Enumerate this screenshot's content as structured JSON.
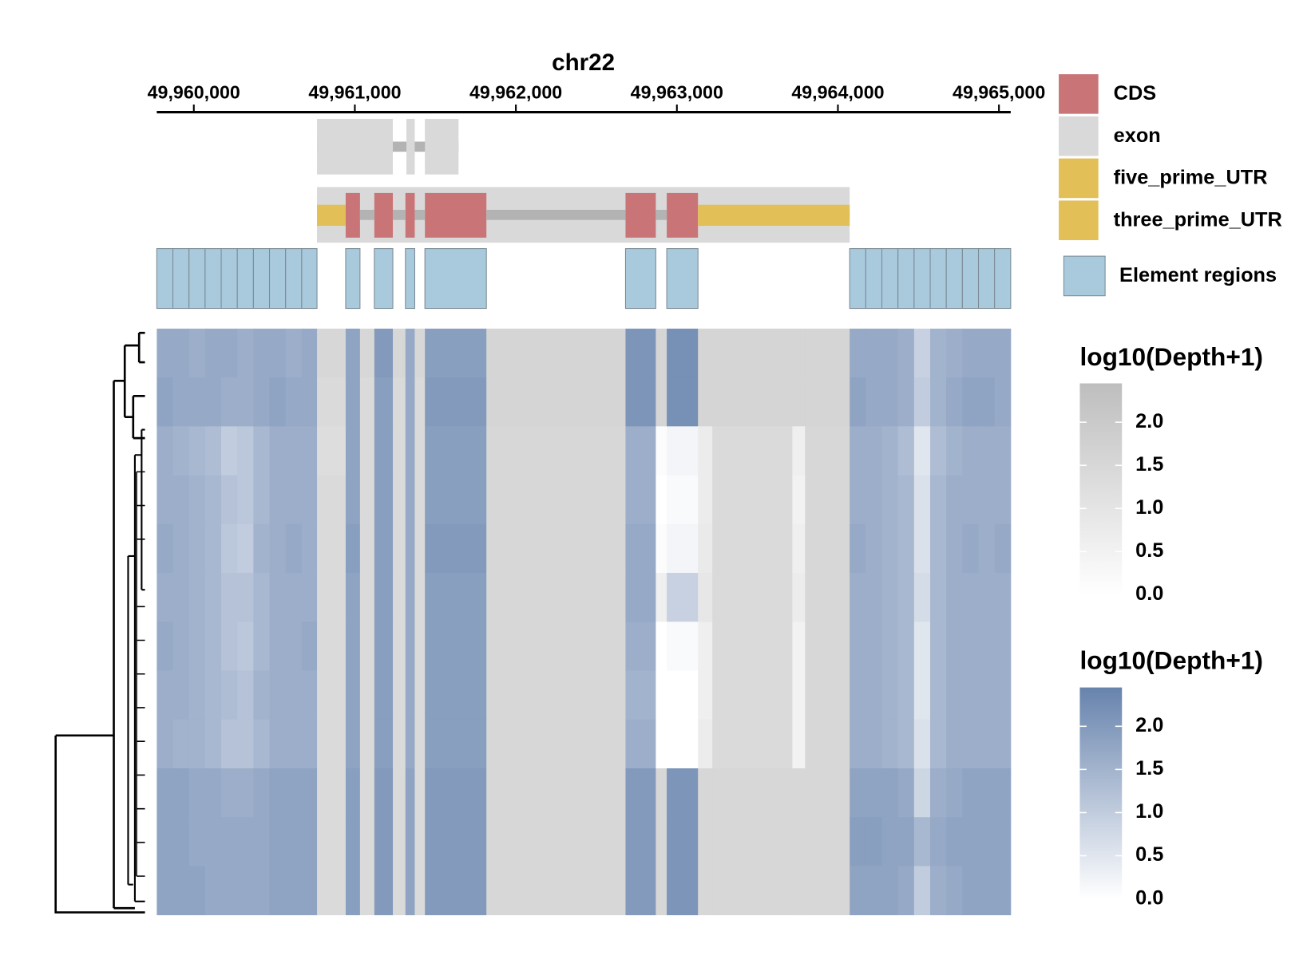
{
  "chart_data": {
    "type": "heatmap",
    "title": "chr22",
    "xlim": [
      49959770,
      49965073
    ],
    "xticks": [
      {
        "value": 49960000,
        "label": "49,960,000"
      },
      {
        "value": 49961000,
        "label": "49,961,000"
      },
      {
        "value": 49962000,
        "label": "49,962,000"
      },
      {
        "value": 49963000,
        "label": "49,963,000"
      },
      {
        "value": 49964000,
        "label": "49,964,000"
      },
      {
        "value": 49965000,
        "label": "49,965,000"
      }
    ],
    "intron_color": "#b3b3b3",
    "legend": [
      {
        "name": "CDS",
        "color": "#c97577"
      },
      {
        "name": "exon",
        "color": "#d9d9d9"
      },
      {
        "name": "five_prime_UTR",
        "color": "#e3bf58"
      },
      {
        "name": "three_prime_UTR",
        "color": "#e3bf58"
      },
      {
        "name": "Element regions",
        "color": "#a9cadd"
      }
    ],
    "transcripts": [
      {
        "layers": [
          {
            "legend": 1,
            "ranges": [
              [
                49960765,
                49961236
              ],
              [
                49961320,
                49961372
              ],
              [
                49961435,
                49961644
              ]
            ]
          }
        ]
      },
      {
        "layers": [
          {
            "legend": 1,
            "ranges": [
              [
                49960765,
                49964073
              ]
            ]
          },
          {
            "legend": 2,
            "ranges": [
              [
                49960765,
                49960943
              ]
            ]
          },
          {
            "legend": 0,
            "ranges": [
              [
                49960943,
                49961032
              ],
              [
                49961121,
                49961236
              ],
              [
                49961314,
                49961372
              ],
              [
                49961435,
                49961817
              ],
              [
                49962681,
                49962869
              ],
              [
                49962937,
                49963131
              ]
            ]
          },
          {
            "legend": 3,
            "ranges": [
              [
                49963131,
                49964073
              ]
            ]
          }
        ]
      }
    ],
    "element_regions": [
      [
        49959770,
        49959870
      ],
      [
        49959870,
        49959970
      ],
      [
        49959970,
        49960070
      ],
      [
        49960070,
        49960170
      ],
      [
        49960170,
        49960270
      ],
      [
        49960270,
        49960370
      ],
      [
        49960370,
        49960470
      ],
      [
        49960470,
        49960570
      ],
      [
        49960570,
        49960670
      ],
      [
        49960670,
        49960765
      ],
      [
        49960943,
        49961032
      ],
      [
        49961121,
        49961236
      ],
      [
        49961314,
        49961372
      ],
      [
        49961435,
        49961817
      ],
      [
        49962681,
        49962869
      ],
      [
        49962937,
        49963131
      ],
      [
        49964073,
        49964173
      ],
      [
        49964173,
        49964273
      ],
      [
        49964273,
        49964373
      ],
      [
        49964373,
        49964473
      ],
      [
        49964473,
        49964573
      ],
      [
        49964573,
        49964673
      ],
      [
        49964673,
        49964773
      ],
      [
        49964773,
        49964873
      ],
      [
        49964873,
        49964973
      ],
      [
        49964973,
        49965073
      ]
    ],
    "heatmap": {
      "col_breaks": [
        49959770,
        49959870,
        49959970,
        49960070,
        49960170,
        49960270,
        49960370,
        49960470,
        49960570,
        49960670,
        49960765,
        49960943,
        49961032,
        49961121,
        49961236,
        49961314,
        49961372,
        49961435,
        49961817,
        49962681,
        49962869,
        49962937,
        49963131,
        49963220,
        49963717,
        49963796,
        49964073,
        49964173,
        49964273,
        49964373,
        49964473,
        49964573,
        49964673,
        49964773,
        49964873,
        49964973,
        49965073
      ],
      "col_scale": [
        1,
        1,
        1,
        1,
        1,
        1,
        1,
        1,
        1,
        1,
        0,
        1,
        0,
        1,
        0,
        1,
        0,
        1,
        0,
        1,
        0,
        1,
        0,
        0,
        0,
        0,
        1,
        1,
        1,
        1,
        1,
        1,
        1,
        1,
        1,
        1
      ],
      "rows": [
        [
          1.7,
          1.7,
          1.6,
          1.7,
          1.7,
          1.6,
          1.7,
          1.7,
          1.6,
          1.7,
          1.5,
          1.8,
          1.5,
          2.0,
          1.5,
          1.7,
          1.5,
          1.9,
          1.6,
          2.1,
          1.6,
          2.2,
          1.6,
          1.6,
          1.6,
          1.6,
          1.7,
          1.7,
          1.7,
          1.6,
          0.9,
          1.5,
          1.6,
          1.7,
          1.7,
          1.7
        ],
        [
          1.8,
          1.7,
          1.7,
          1.7,
          1.6,
          1.6,
          1.7,
          1.8,
          1.7,
          1.7,
          1.4,
          1.8,
          1.4,
          1.9,
          1.4,
          1.7,
          1.4,
          2.0,
          1.6,
          2.1,
          1.6,
          2.2,
          1.6,
          1.6,
          1.6,
          1.6,
          1.8,
          1.7,
          1.7,
          1.6,
          1.0,
          1.5,
          1.7,
          1.8,
          1.8,
          1.7
        ],
        [
          1.6,
          1.5,
          1.4,
          1.3,
          1.0,
          1.1,
          1.4,
          1.6,
          1.6,
          1.6,
          1.3,
          1.8,
          1.4,
          1.9,
          1.4,
          1.7,
          1.4,
          1.9,
          1.5,
          1.6,
          0.1,
          0.2,
          0.7,
          1.4,
          0.6,
          1.5,
          1.6,
          1.6,
          1.5,
          1.3,
          0.5,
          1.3,
          1.5,
          1.6,
          1.6,
          1.6
        ],
        [
          1.6,
          1.6,
          1.5,
          1.4,
          1.2,
          1.1,
          1.4,
          1.6,
          1.6,
          1.6,
          1.4,
          1.8,
          1.4,
          1.9,
          1.4,
          1.7,
          1.4,
          1.9,
          1.5,
          1.6,
          0.0,
          0.1,
          0.7,
          1.4,
          0.5,
          1.5,
          1.6,
          1.6,
          1.5,
          1.4,
          0.6,
          1.4,
          1.6,
          1.6,
          1.6,
          1.6
        ],
        [
          1.7,
          1.6,
          1.5,
          1.4,
          1.1,
          1.0,
          1.5,
          1.6,
          1.7,
          1.6,
          1.4,
          1.9,
          1.4,
          1.9,
          1.4,
          1.7,
          1.4,
          2.0,
          1.5,
          1.7,
          0.1,
          0.2,
          0.8,
          1.4,
          0.6,
          1.5,
          1.7,
          1.6,
          1.5,
          1.4,
          0.6,
          1.4,
          1.6,
          1.7,
          1.6,
          1.7
        ],
        [
          1.6,
          1.6,
          1.5,
          1.4,
          1.2,
          1.2,
          1.4,
          1.6,
          1.6,
          1.6,
          1.4,
          1.8,
          1.4,
          1.9,
          1.4,
          1.7,
          1.4,
          1.9,
          1.5,
          1.7,
          0.6,
          0.9,
          0.9,
          1.4,
          0.7,
          1.5,
          1.6,
          1.6,
          1.5,
          1.4,
          0.7,
          1.4,
          1.6,
          1.6,
          1.6,
          1.6
        ],
        [
          1.7,
          1.6,
          1.5,
          1.4,
          1.2,
          1.1,
          1.4,
          1.6,
          1.6,
          1.7,
          1.4,
          1.8,
          1.4,
          1.9,
          1.4,
          1.7,
          1.4,
          1.9,
          1.5,
          1.6,
          0.0,
          0.1,
          0.6,
          1.4,
          0.5,
          1.5,
          1.6,
          1.6,
          1.5,
          1.4,
          0.5,
          1.4,
          1.6,
          1.6,
          1.6,
          1.6
        ],
        [
          1.6,
          1.6,
          1.5,
          1.4,
          1.3,
          1.2,
          1.5,
          1.6,
          1.6,
          1.6,
          1.4,
          1.8,
          1.4,
          1.9,
          1.4,
          1.7,
          1.4,
          1.9,
          1.5,
          1.5,
          0.0,
          0.0,
          0.6,
          1.4,
          0.5,
          1.5,
          1.6,
          1.6,
          1.5,
          1.4,
          0.5,
          1.4,
          1.6,
          1.6,
          1.6,
          1.6
        ],
        [
          1.6,
          1.5,
          1.5,
          1.4,
          1.2,
          1.2,
          1.4,
          1.6,
          1.6,
          1.6,
          1.4,
          1.8,
          1.4,
          1.9,
          1.4,
          1.7,
          1.4,
          1.9,
          1.5,
          1.6,
          0.0,
          0.0,
          0.7,
          1.4,
          0.5,
          1.5,
          1.6,
          1.6,
          1.5,
          1.4,
          0.6,
          1.4,
          1.6,
          1.6,
          1.6,
          1.6
        ],
        [
          1.8,
          1.8,
          1.7,
          1.7,
          1.6,
          1.6,
          1.7,
          1.8,
          1.8,
          1.8,
          1.4,
          1.9,
          1.4,
          2.0,
          1.4,
          1.8,
          1.4,
          2.0,
          1.5,
          2.0,
          1.5,
          2.1,
          1.5,
          1.5,
          1.5,
          1.5,
          1.8,
          1.8,
          1.8,
          1.7,
          0.8,
          1.6,
          1.7,
          1.8,
          1.8,
          1.8
        ],
        [
          1.8,
          1.8,
          1.7,
          1.7,
          1.7,
          1.7,
          1.7,
          1.8,
          1.8,
          1.8,
          1.4,
          1.9,
          1.4,
          2.0,
          1.4,
          1.8,
          1.4,
          2.0,
          1.5,
          2.0,
          1.5,
          2.1,
          1.5,
          1.5,
          1.5,
          1.5,
          1.9,
          1.9,
          1.8,
          1.8,
          1.4,
          1.7,
          1.8,
          1.8,
          1.8,
          1.8
        ],
        [
          1.8,
          1.8,
          1.8,
          1.7,
          1.7,
          1.7,
          1.7,
          1.8,
          1.8,
          1.8,
          1.4,
          1.9,
          1.4,
          2.0,
          1.4,
          1.8,
          1.4,
          2.0,
          1.5,
          2.0,
          1.5,
          2.1,
          1.5,
          1.5,
          1.5,
          1.5,
          1.8,
          1.8,
          1.8,
          1.7,
          1.0,
          1.6,
          1.7,
          1.8,
          1.8,
          1.8
        ]
      ]
    },
    "colorbars": [
      {
        "title": "log10(Depth+1)",
        "colors": [
          "#ffffff",
          "#bebebe"
        ],
        "lim": [
          0,
          2.45
        ],
        "ticks": [
          {
            "value": 0,
            "label": "0.0"
          },
          0.5,
          {
            "value": 1,
            "label": "1.0"
          },
          1.5,
          {
            "value": 2,
            "label": "2.0"
          }
        ]
      },
      {
        "title": "log10(Depth+1)",
        "colors": [
          "#ffffff",
          "#6783ad"
        ],
        "lim": [
          0,
          2.45
        ],
        "ticks": [
          {
            "value": 0,
            "label": "0.0"
          },
          0.5,
          {
            "value": 1,
            "label": "1.0"
          },
          1.5,
          {
            "value": 2,
            "label": "2.0"
          }
        ]
      }
    ]
  }
}
